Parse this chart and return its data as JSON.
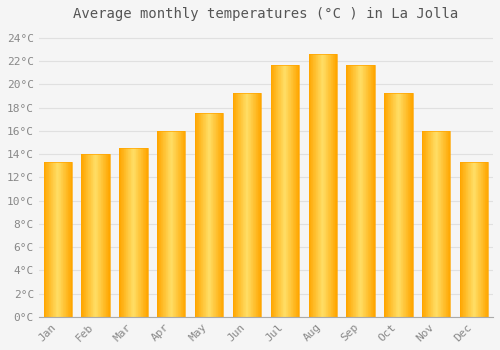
{
  "title": "Average monthly temperatures (°C ) in La Jolla",
  "months": [
    "Jan",
    "Feb",
    "Mar",
    "Apr",
    "May",
    "Jun",
    "Jul",
    "Aug",
    "Sep",
    "Oct",
    "Nov",
    "Dec"
  ],
  "temperatures": [
    13.3,
    14.0,
    14.5,
    16.0,
    17.5,
    19.3,
    21.7,
    22.6,
    21.7,
    19.3,
    16.0,
    13.3
  ],
  "bar_color_center": "#FFD966",
  "bar_color_edge": "#FFA500",
  "background_color": "#F5F5F5",
  "grid_color": "#E0E0E0",
  "text_color": "#888888",
  "title_color": "#555555",
  "ylim": [
    0,
    25
  ],
  "ytick_step": 2,
  "title_fontsize": 10,
  "tick_fontsize": 8,
  "bar_width": 0.75
}
